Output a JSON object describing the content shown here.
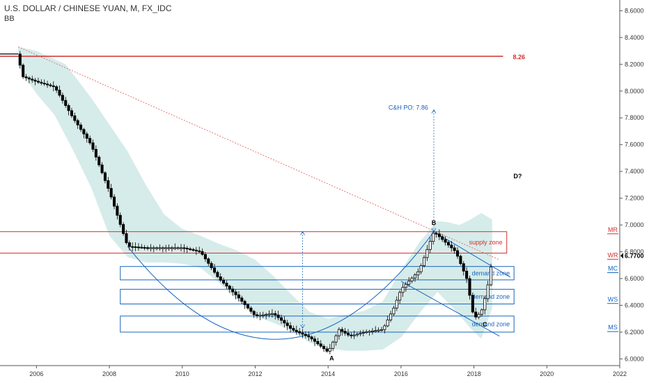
{
  "header": {
    "title": "U.S. DOLLAR / CHINESE YUAN, M, FX_IDC",
    "indicator": "BB"
  },
  "colors": {
    "band_fill": "#cfe9e6",
    "up_candle": "#ffffff",
    "down_candle": "#000000",
    "resistance": "#d32f2f",
    "trendline": "#e57373",
    "blue": "#1565c0",
    "axis_text": "#333333"
  },
  "chart_data": {
    "type": "candlestick",
    "symbol": "USD/CNY",
    "timeframe": "M",
    "xlim": [
      2005.0,
      2022.0
    ],
    "ylim": [
      5.95,
      8.68
    ],
    "x_ticks": [
      2006,
      2008,
      2010,
      2012,
      2014,
      2016,
      2018,
      2020,
      2022
    ],
    "x_tick_labels": [
      "2006",
      "2008",
      "2010",
      "2012",
      "2014",
      "2016",
      "2018",
      "2020",
      "2022"
    ],
    "y_ticks": [
      6.0,
      6.2,
      6.4,
      6.6,
      6.8,
      7.0,
      7.2,
      7.4,
      7.6,
      7.8,
      8.0,
      8.2,
      8.4,
      8.6
    ],
    "y_tick_labels": [
      "6.0000",
      "6.2000",
      "6.4000",
      "6.6000",
      "6.8000",
      "7.0000",
      "7.2000",
      "7.4000",
      "7.6000",
      "7.8000",
      "8.0000",
      "8.2000",
      "8.4000",
      "8.6000"
    ],
    "price_path": [
      [
        2005.0,
        8.277
      ],
      [
        2005.5,
        8.277
      ],
      [
        2005.6,
        8.11
      ],
      [
        2006.0,
        8.07
      ],
      [
        2006.5,
        8.03
      ],
      [
        2007.0,
        7.8
      ],
      [
        2007.5,
        7.6
      ],
      [
        2008.0,
        7.25
      ],
      [
        2008.5,
        6.84
      ],
      [
        2009.0,
        6.83
      ],
      [
        2010.0,
        6.83
      ],
      [
        2010.5,
        6.8
      ],
      [
        2011.0,
        6.6
      ],
      [
        2011.5,
        6.47
      ],
      [
        2012.0,
        6.32
      ],
      [
        2012.5,
        6.34
      ],
      [
        2013.0,
        6.22
      ],
      [
        2013.5,
        6.16
      ],
      [
        2014.0,
        6.05
      ],
      [
        2014.3,
        6.22
      ],
      [
        2014.6,
        6.17
      ],
      [
        2015.0,
        6.2
      ],
      [
        2015.5,
        6.22
      ],
      [
        2015.8,
        6.38
      ],
      [
        2016.0,
        6.52
      ],
      [
        2016.5,
        6.66
      ],
      [
        2016.9,
        6.95
      ],
      [
        2017.1,
        6.9
      ],
      [
        2017.5,
        6.8
      ],
      [
        2017.8,
        6.6
      ],
      [
        2018.0,
        6.3
      ],
      [
        2018.2,
        6.35
      ],
      [
        2018.35,
        6.5
      ],
      [
        2018.5,
        6.74
      ]
    ],
    "bollinger": {
      "upper": [
        [
          2005.5,
          8.33
        ],
        [
          2006.0,
          8.3
        ],
        [
          2006.8,
          8.2
        ],
        [
          2007.5,
          7.95
        ],
        [
          2008.5,
          7.55
        ],
        [
          2009.0,
          7.3
        ],
        [
          2009.5,
          7.08
        ],
        [
          2010.0,
          6.97
        ],
        [
          2010.5,
          6.92
        ],
        [
          2011.0,
          6.86
        ],
        [
          2011.5,
          6.81
        ],
        [
          2012.0,
          6.74
        ],
        [
          2012.5,
          6.62
        ],
        [
          2013.0,
          6.48
        ],
        [
          2013.5,
          6.35
        ],
        [
          2014.0,
          6.3
        ],
        [
          2014.5,
          6.33
        ],
        [
          2015.0,
          6.36
        ],
        [
          2015.5,
          6.43
        ],
        [
          2016.0,
          6.66
        ],
        [
          2016.5,
          6.87
        ],
        [
          2017.0,
          7.03
        ],
        [
          2017.3,
          7.02
        ],
        [
          2017.6,
          7.0
        ],
        [
          2017.9,
          7.04
        ],
        [
          2018.2,
          7.09
        ],
        [
          2018.5,
          7.04
        ]
      ],
      "lower": [
        [
          2018.5,
          6.38
        ],
        [
          2018.2,
          6.15
        ],
        [
          2017.9,
          6.23
        ],
        [
          2017.5,
          6.36
        ],
        [
          2017.0,
          6.5
        ],
        [
          2016.5,
          6.34
        ],
        [
          2016.0,
          6.16
        ],
        [
          2015.5,
          6.07
        ],
        [
          2015.0,
          6.06
        ],
        [
          2014.5,
          6.06
        ],
        [
          2014.0,
          6.08
        ],
        [
          2013.5,
          6.12
        ],
        [
          2013.0,
          6.21
        ],
        [
          2012.5,
          6.27
        ],
        [
          2012.0,
          6.32
        ],
        [
          2011.5,
          6.44
        ],
        [
          2011.0,
          6.57
        ],
        [
          2010.5,
          6.68
        ],
        [
          2010.0,
          6.71
        ],
        [
          2009.5,
          6.72
        ],
        [
          2009.0,
          6.72
        ],
        [
          2008.5,
          6.76
        ],
        [
          2008.0,
          6.92
        ],
        [
          2007.5,
          7.28
        ],
        [
          2007.0,
          7.56
        ],
        [
          2006.5,
          7.82
        ],
        [
          2006.0,
          7.98
        ],
        [
          2005.5,
          8.18
        ]
      ]
    },
    "resistance_line": {
      "y": 8.26,
      "x_start": 2005.0,
      "x_end": 2018.8,
      "label": "8.26"
    },
    "trendline": {
      "points": [
        [
          2005.5,
          8.33
        ],
        [
          2018.7,
          6.74
        ]
      ]
    },
    "zones": [
      {
        "label": "supply zone",
        "y_low": 6.79,
        "y_high": 6.95,
        "x_start": 2004.9,
        "x_end": 2018.9,
        "color": "#d32f2f"
      },
      {
        "label": "demand zone",
        "y_low": 6.59,
        "y_high": 6.69,
        "x_start": 2008.3,
        "x_end": 2019.1,
        "color": "#1565c0"
      },
      {
        "label": "demand zone",
        "y_low": 6.41,
        "y_high": 6.52,
        "x_start": 2008.3,
        "x_end": 2019.1,
        "color": "#1565c0"
      },
      {
        "label": "demand zone",
        "y_low": 6.2,
        "y_high": 6.32,
        "x_start": 2008.3,
        "x_end": 2019.1,
        "color": "#1565c0"
      }
    ],
    "cup_curve": {
      "points": [
        [
          2008.5,
          6.84
        ],
        [
          2012.7,
          5.4
        ],
        [
          2016.9,
          6.95
        ]
      ]
    },
    "channel_lines": [
      {
        "points": [
          [
            2016.9,
            6.95
          ],
          [
            2019.0,
            6.61
          ]
        ]
      },
      {
        "points": [
          [
            2016.0,
            6.58
          ],
          [
            2018.7,
            6.17
          ]
        ]
      }
    ],
    "annotations": [
      {
        "text": "B",
        "x": 2016.9,
        "y": 7.0
      },
      {
        "text": "A",
        "x": 2014.1,
        "y": 5.99
      },
      {
        "text": "C",
        "x": 2018.3,
        "y": 6.24
      },
      {
        "text": "D?",
        "x": 2019.2,
        "y": 7.35
      },
      {
        "text": "C&H PO: 7.86",
        "x": 2016.2,
        "y": 7.86
      }
    ],
    "target_arrows": [
      {
        "x": 2013.3,
        "y_from": 6.23,
        "y_to": 6.95
      },
      {
        "x": 2016.9,
        "y_from": 6.95,
        "y_to": 7.86
      }
    ],
    "right_labels": [
      {
        "text": "MR",
        "y": 6.96,
        "color": "#d32f2f"
      },
      {
        "text": "WR",
        "y": 6.77,
        "color": "#d32f2f"
      },
      {
        "text": "MC",
        "y": 6.67,
        "color": "#1565c0"
      },
      {
        "text": "WS",
        "y": 6.44,
        "color": "#1565c0"
      },
      {
        "text": "MS",
        "y": 6.23,
        "color": "#1565c0"
      }
    ],
    "last_price": {
      "text": "6.7700",
      "y": 6.77
    }
  }
}
